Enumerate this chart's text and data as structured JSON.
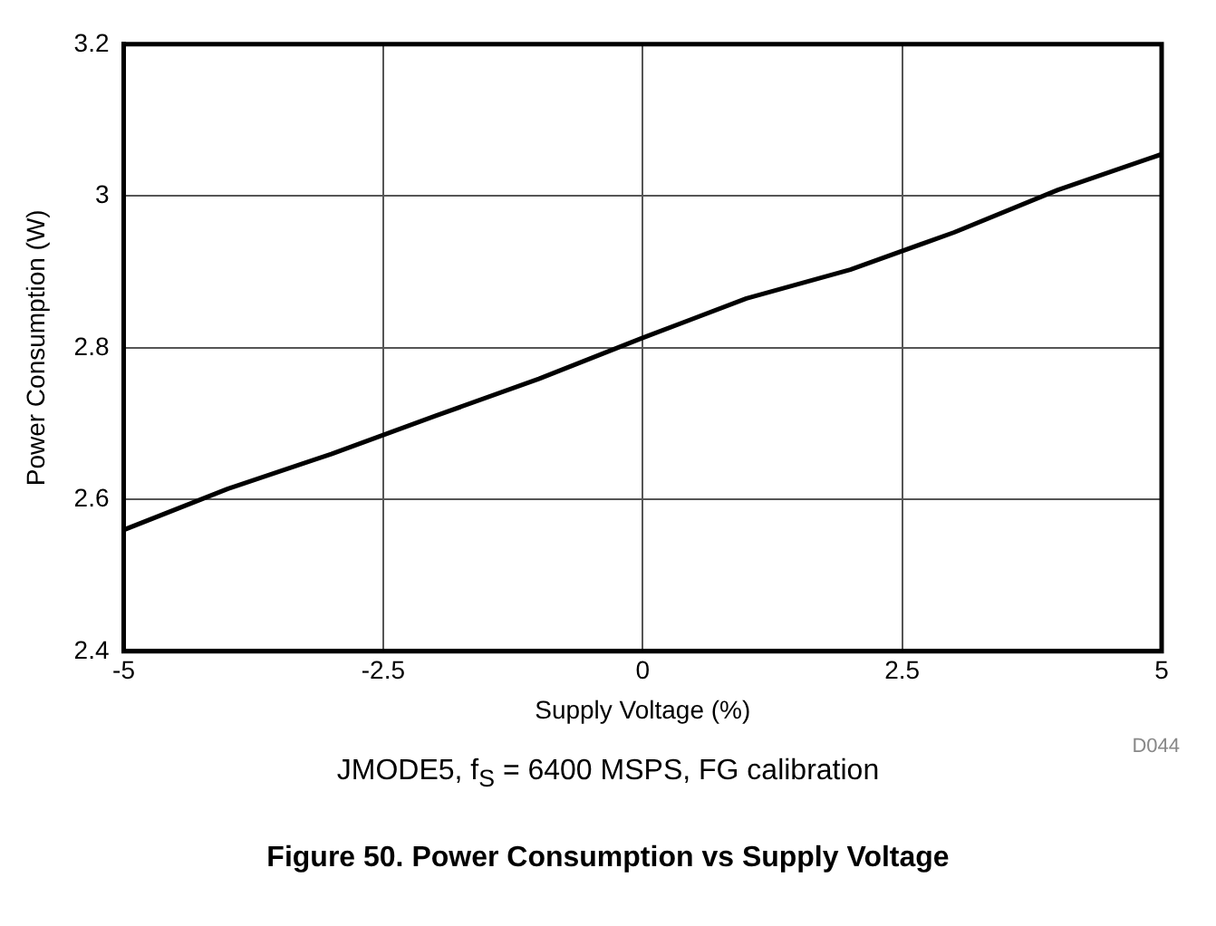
{
  "chart_data": {
    "type": "line",
    "title": "Figure 50. Power Consumption vs Supply Voltage",
    "xlabel": "Supply Voltage (%)",
    "ylabel": "Power Consumption (W)",
    "x": [
      -5,
      -4,
      -3,
      -2,
      -1,
      0,
      1,
      2,
      3,
      4,
      5
    ],
    "series": [
      {
        "color": "#000000",
        "values": [
          2.56,
          2.614,
          2.66,
          2.71,
          2.759,
          2.813,
          2.865,
          2.903,
          2.952,
          3.008,
          3.055
        ]
      }
    ],
    "xlim": [
      -5,
      5
    ],
    "xticks": [
      -5,
      -2.5,
      0,
      2.5,
      5
    ],
    "ylim": [
      2.4,
      3.2
    ],
    "yticks": [
      2.4,
      2.6,
      2.8,
      3,
      3.2
    ],
    "grid": true,
    "legend": false,
    "marker": "none",
    "line_style": "solid",
    "annotations": [
      "D044",
      "JMODE5, f$_{S}$ = 6400 MSPS, FG calibration"
    ]
  }
}
